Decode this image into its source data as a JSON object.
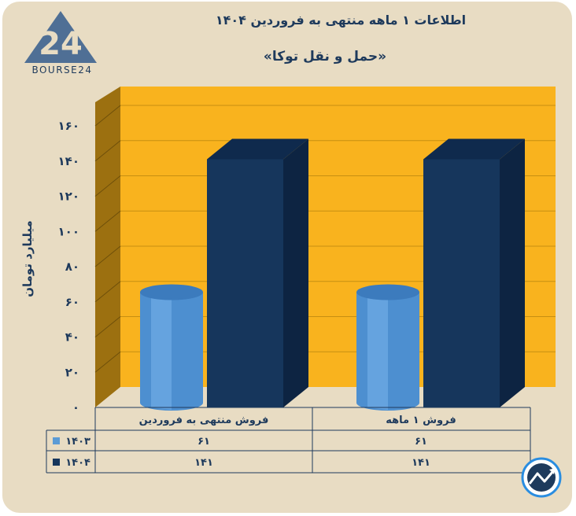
{
  "chart_data": {
    "type": "bar",
    "title": "اطلاعات ۱ ماهه منتهی به فروردین ۱۴۰۴",
    "subtitle": "«حمل و نقل توکا»",
    "xlabel": "",
    "ylabel": "میلیارد تومان",
    "categories": [
      "فروش منتهی به  فروردین",
      "فروش ۱  ماهه"
    ],
    "series": [
      {
        "name": "۱۴۰۳",
        "values": [
          61,
          61
        ],
        "value_labels": [
          "۶۱",
          "۶۱"
        ],
        "color": "#5b9bd5"
      },
      {
        "name": "۱۴۰۴",
        "values": [
          141,
          141
        ],
        "value_labels": [
          "۱۴۱",
          "۱۴۱"
        ],
        "color": "#16365c"
      }
    ],
    "ylim": [
      0,
      160
    ],
    "yticks": [
      0,
      20,
      40,
      60,
      80,
      100,
      120,
      140,
      160
    ],
    "ytick_labels": [
      "۰",
      "۲۰",
      "۴۰",
      "۶۰",
      "۸۰",
      "۱۰۰",
      "۱۲۰",
      "۱۴۰",
      "۱۶۰"
    ],
    "grid": true,
    "legend": "data-table-below",
    "colors": {
      "back_wall": "#f9b31e",
      "side_wall": "#9c7010",
      "floor": "#e8dcc3",
      "text": "#1e3a5c"
    }
  },
  "logo": {
    "text": "BOURSE24"
  }
}
